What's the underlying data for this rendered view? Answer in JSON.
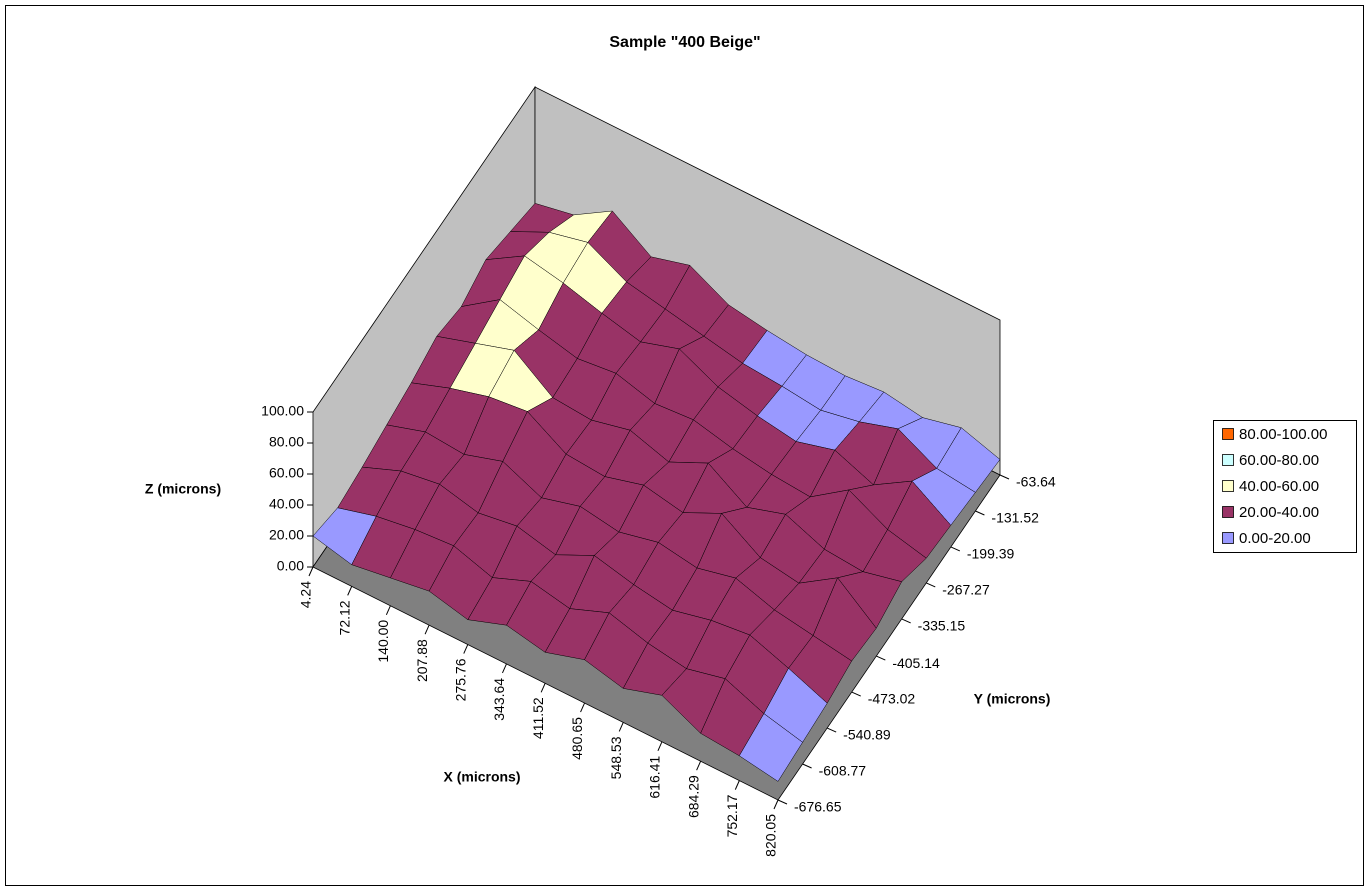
{
  "chart_data": {
    "type": "surface3d",
    "title": "Sample \"400 Beige\"",
    "xlabel": "X (microns)",
    "ylabel": "Y (microns)",
    "zlabel": "Z (microns)",
    "xlim": [
      4.24,
      820.05
    ],
    "ylim": [
      -676.65,
      -63.64
    ],
    "zlim": [
      0,
      100
    ],
    "xticks": [
      4.24,
      72.12,
      {
        "value": 140,
        "label": "140.00"
      },
      207.88,
      275.76,
      343.64,
      411.52,
      480.65,
      548.53,
      616.41,
      684.29,
      752.17,
      820.05
    ],
    "yticks": [
      -63.64,
      -131.52,
      -199.39,
      -267.27,
      -335.15,
      -405.14,
      -473.02,
      -540.89,
      -608.77,
      -676.65
    ],
    "zticks": [
      {
        "value": 0,
        "label": "0.00"
      },
      {
        "value": 20,
        "label": "20.00"
      },
      {
        "value": 40,
        "label": "40.00"
      },
      {
        "value": 60,
        "label": "60.00"
      },
      {
        "value": 80,
        "label": "80.00"
      },
      {
        "value": 100,
        "label": "100.00"
      }
    ],
    "legend": [
      {
        "name": "80.00-100.00",
        "color": "#ff6600"
      },
      {
        "name": "60.00-80.00",
        "color": "#ccffff"
      },
      {
        "name": "40.00-60.00",
        "color": "#ffffcc"
      },
      {
        "name": "20.00-40.00",
        "color": "#993366"
      },
      {
        "name": "0.00-20.00",
        "color": "#9999ff"
      }
    ],
    "legend_position": "right",
    "z": [
      [
        25,
        30,
        45,
        28,
        35,
        22,
        18,
        15,
        14,
        16,
        12,
        18,
        10
      ],
      [
        30,
        42,
        48,
        35,
        30,
        25,
        20,
        18,
        15,
        20,
        28,
        15,
        12
      ],
      [
        35,
        50,
        45,
        38,
        32,
        40,
        28,
        22,
        18,
        25,
        15,
        30,
        14
      ],
      [
        28,
        45,
        38,
        32,
        35,
        28,
        30,
        24,
        20,
        18,
        35,
        22,
        16
      ],
      [
        32,
        40,
        48,
        30,
        28,
        34,
        26,
        38,
        22,
        30,
        20,
        18,
        24
      ],
      [
        26,
        35,
        42,
        45,
        30,
        28,
        35,
        30,
        42,
        26,
        22,
        38,
        18
      ],
      [
        22,
        30,
        28,
        36,
        25,
        32,
        28,
        34,
        30,
        36,
        28,
        24,
        20
      ],
      [
        18,
        28,
        32,
        26,
        30,
        24,
        36,
        30,
        26,
        32,
        35,
        26,
        16
      ],
      [
        15,
        22,
        26,
        28,
        20,
        30,
        25,
        35,
        28,
        24,
        30,
        20,
        14
      ],
      [
        20,
        14,
        18,
        22,
        16,
        25,
        20,
        28,
        22,
        30,
        18,
        16,
        12
      ]
    ]
  }
}
